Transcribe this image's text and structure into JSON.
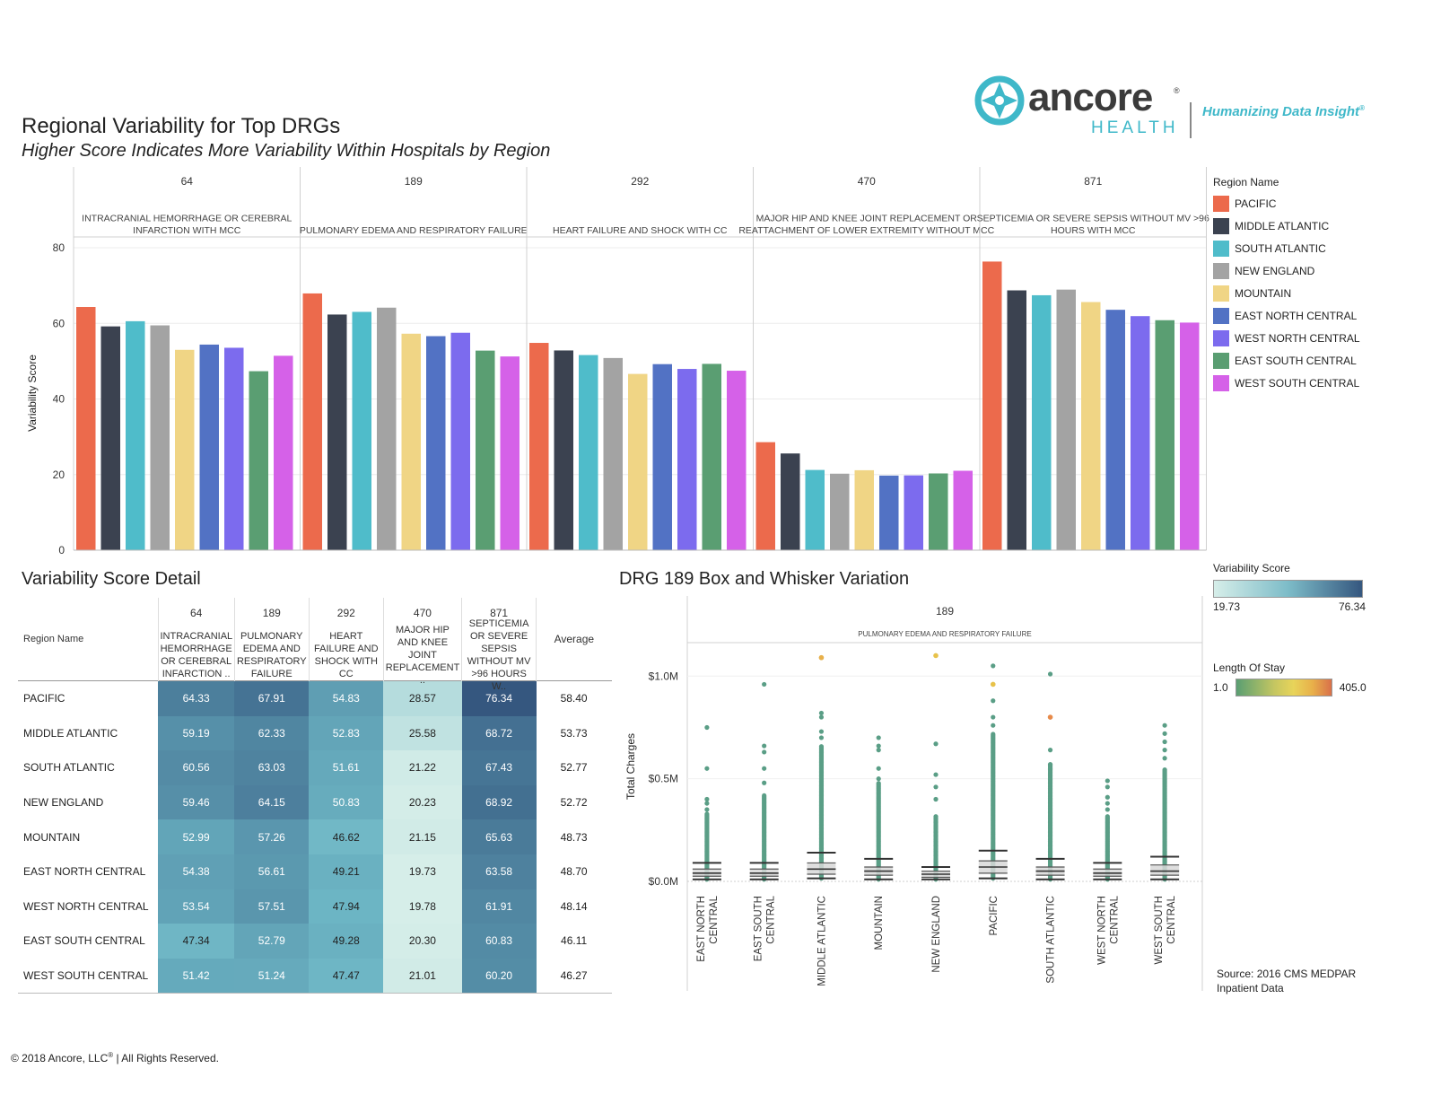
{
  "header": {
    "title": "Regional Variability for Top DRGs",
    "subtitle": "Higher Score Indicates More Variability Within Hospitals by Region"
  },
  "logo": {
    "name": "ancore",
    "sub": "HEALTH",
    "registered": "®",
    "tagline": "Humanizing Data Insight",
    "tagline_mark": "®"
  },
  "regions": [
    "PACIFIC",
    "MIDDLE ATLANTIC",
    "SOUTH ATLANTIC",
    "NEW ENGLAND",
    "MOUNTAIN",
    "EAST NORTH CENTRAL",
    "WEST NORTH CENTRAL",
    "EAST SOUTH CENTRAL",
    "WEST SOUTH CENTRAL"
  ],
  "region_colors": [
    "#ec6a4c",
    "#3b4250",
    "#4fbcca",
    "#a3a3a3",
    "#f0d585",
    "#5272c4",
    "#7c6bee",
    "#5a9e72",
    "#d561e8"
  ],
  "legend": {
    "title": "Region Name"
  },
  "chart_data": [
    {
      "type": "bar",
      "title": "Regional Variability for Top DRGs",
      "ylabel": "Variability Score",
      "ylim": [
        0,
        80
      ],
      "yticks": [
        0,
        20,
        40,
        60,
        80
      ],
      "panels": [
        {
          "code": "64",
          "name": "INTRACRANIAL HEMORRHAGE OR CEREBRAL INFARCTION WITH MCC",
          "values": [
            64.33,
            59.19,
            60.56,
            59.46,
            52.99,
            54.38,
            53.54,
            47.34,
            51.42
          ]
        },
        {
          "code": "189",
          "name": "PULMONARY EDEMA AND RESPIRATORY FAILURE",
          "values": [
            67.91,
            62.33,
            63.03,
            64.15,
            57.26,
            56.61,
            57.51,
            52.79,
            51.24
          ]
        },
        {
          "code": "292",
          "name": "HEART FAILURE AND SHOCK WITH CC",
          "values": [
            54.83,
            52.83,
            51.61,
            50.83,
            46.62,
            49.21,
            47.94,
            49.28,
            47.47
          ]
        },
        {
          "code": "470",
          "name": "MAJOR HIP AND KNEE JOINT REPLACEMENT OR REATTACHMENT OF LOWER EXTREMITY WITHOUT MCC",
          "values": [
            28.57,
            25.58,
            21.22,
            20.23,
            21.15,
            19.73,
            19.78,
            20.3,
            21.01
          ]
        },
        {
          "code": "871",
          "name": "SEPTICEMIA OR SEVERE SEPSIS WITHOUT MV >96 HOURS WITH MCC",
          "values": [
            76.34,
            68.72,
            67.43,
            68.92,
            65.63,
            63.58,
            61.91,
            60.83,
            60.2
          ]
        }
      ]
    },
    {
      "type": "table",
      "title": "Variability Score Detail",
      "row_header": "Region Name",
      "columns": [
        {
          "code": "64",
          "label": "INTRACRANIAL HEMORRHAGE OR CEREBRAL INFARCTION .."
        },
        {
          "code": "189",
          "label": "PULMONARY EDEMA AND RESPIRATORY FAILURE"
        },
        {
          "code": "292",
          "label": "HEART FAILURE AND SHOCK WITH CC"
        },
        {
          "code": "470",
          "label": "MAJOR HIP AND KNEE JOINT REPLACEMENT .."
        },
        {
          "code": "871",
          "label": "SEPTICEMIA OR SEVERE SEPSIS WITHOUT MV >96 HOURS W.."
        }
      ],
      "average_label": "Average",
      "rows": [
        {
          "region": "PACIFIC",
          "values": [
            "64.33",
            "67.91",
            "54.83",
            "28.57",
            "76.34"
          ],
          "average": "58.40"
        },
        {
          "region": "MIDDLE ATLANTIC",
          "values": [
            "59.19",
            "62.33",
            "52.83",
            "25.58",
            "68.72"
          ],
          "average": "53.73"
        },
        {
          "region": "SOUTH ATLANTIC",
          "values": [
            "60.56",
            "63.03",
            "51.61",
            "21.22",
            "67.43"
          ],
          "average": "52.77"
        },
        {
          "region": "NEW ENGLAND",
          "values": [
            "59.46",
            "64.15",
            "50.83",
            "20.23",
            "68.92"
          ],
          "average": "52.72"
        },
        {
          "region": "MOUNTAIN",
          "values": [
            "52.99",
            "57.26",
            "46.62",
            "21.15",
            "65.63"
          ],
          "average": "48.73"
        },
        {
          "region": "EAST NORTH CENTRAL",
          "values": [
            "54.38",
            "56.61",
            "49.21",
            "19.73",
            "63.58"
          ],
          "average": "48.70"
        },
        {
          "region": "WEST NORTH CENTRAL",
          "values": [
            "53.54",
            "57.51",
            "47.94",
            "19.78",
            "61.91"
          ],
          "average": "48.14"
        },
        {
          "region": "EAST SOUTH CENTRAL",
          "values": [
            "47.34",
            "52.79",
            "49.28",
            "20.30",
            "60.83"
          ],
          "average": "46.11"
        },
        {
          "region": "WEST SOUTH CENTRAL",
          "values": [
            "51.42",
            "51.24",
            "47.47",
            "21.01",
            "60.20"
          ],
          "average": "46.27"
        }
      ]
    },
    {
      "type": "scatter",
      "title": "DRG 189 Box and Whisker Variation",
      "panel_code": "189",
      "panel_name": "PULMONARY EDEMA AND RESPIRATORY FAILURE",
      "ylabel": "Total Charges",
      "ylim": [
        0,
        1.15
      ],
      "yticks": [
        0,
        0.5,
        1.0
      ],
      "ytick_labels": [
        "$0.0M",
        "$0.5M",
        "$1.0M"
      ],
      "categories": [
        [
          "EAST NORTH",
          "CENTRAL"
        ],
        [
          "EAST SOUTH",
          "CENTRAL"
        ],
        [
          "MIDDLE ATLANTIC"
        ],
        [
          "MOUNTAIN"
        ],
        [
          "NEW ENGLAND"
        ],
        [
          "PACIFIC"
        ],
        [
          "SOUTH ATLANTIC"
        ],
        [
          "WEST NORTH",
          "CENTRAL"
        ],
        [
          "WEST SOUTH",
          "CENTRAL"
        ]
      ],
      "series": [
        {
          "whisker_high": 0.09,
          "q3": 0.06,
          "median": 0.04,
          "q1": 0.025,
          "low": 0.01,
          "dense_top": 0.33,
          "outliers": [
            0.75,
            0.55,
            0.4,
            0.38,
            0.35
          ]
        },
        {
          "whisker_high": 0.09,
          "q3": 0.06,
          "median": 0.04,
          "q1": 0.025,
          "low": 0.01,
          "dense_top": 0.42,
          "outliers": [
            0.96,
            0.66,
            0.63,
            0.55,
            0.48
          ]
        },
        {
          "whisker_high": 0.14,
          "q3": 0.09,
          "median": 0.06,
          "q1": 0.035,
          "low": 0.015,
          "dense_top": 0.66,
          "outliers": [
            1.09,
            0.82,
            0.8,
            0.73,
            0.7
          ]
        },
        {
          "whisker_high": 0.11,
          "q3": 0.07,
          "median": 0.05,
          "q1": 0.03,
          "low": 0.01,
          "dense_top": 0.48,
          "outliers": [
            0.7,
            0.66,
            0.64,
            0.55,
            0.5
          ]
        },
        {
          "whisker_high": 0.07,
          "q3": 0.05,
          "median": 0.035,
          "q1": 0.02,
          "low": 0.01,
          "dense_top": 0.32,
          "outliers": [
            1.1,
            0.67,
            0.52,
            0.46,
            0.4
          ]
        },
        {
          "whisker_high": 0.15,
          "q3": 0.1,
          "median": 0.07,
          "q1": 0.04,
          "low": 0.015,
          "dense_top": 0.72,
          "outliers": [
            1.05,
            0.96,
            0.88,
            0.8,
            0.76
          ]
        },
        {
          "whisker_high": 0.11,
          "q3": 0.07,
          "median": 0.05,
          "q1": 0.03,
          "low": 0.01,
          "dense_top": 0.57,
          "outliers": [
            1.01,
            0.8,
            0.64,
            0.57,
            0.55
          ]
        },
        {
          "whisker_high": 0.09,
          "q3": 0.06,
          "median": 0.04,
          "q1": 0.025,
          "low": 0.01,
          "dense_top": 0.32,
          "outliers": [
            0.49,
            0.46,
            0.41,
            0.38,
            0.35
          ]
        },
        {
          "whisker_high": 0.12,
          "q3": 0.08,
          "median": 0.05,
          "q1": 0.03,
          "low": 0.01,
          "dense_top": 0.55,
          "outliers": [
            0.76,
            0.72,
            0.68,
            0.64,
            0.6
          ]
        }
      ],
      "outlier_highlights": [
        {
          "category": 2,
          "value": 1.09,
          "color": "#e8b04a"
        },
        {
          "category": 4,
          "value": 1.1,
          "color": "#e8c24a"
        },
        {
          "category": 5,
          "value": 0.96,
          "color": "#e8c24a"
        },
        {
          "category": 6,
          "value": 0.8,
          "color": "#e88a4a"
        }
      ]
    }
  ],
  "variability_legend": {
    "title": "Variability Score",
    "min": "19.73",
    "max": "76.34",
    "min_color": "#d6eee9",
    "max_color": "#35577f"
  },
  "los_legend": {
    "title": "Length Of Stay",
    "min": "1.0",
    "max": "405.0"
  },
  "source": {
    "line1": "Source: 2016 CMS MEDPAR",
    "line2": "Inpatient Data"
  },
  "footer": {
    "copyright": "© 2018 Ancore, LLC",
    "mark": "®",
    "rights": " | All Rights Reserved."
  },
  "titles": {
    "detail": "Variability Score Detail",
    "box": "DRG 189 Box and Whisker Variation"
  }
}
